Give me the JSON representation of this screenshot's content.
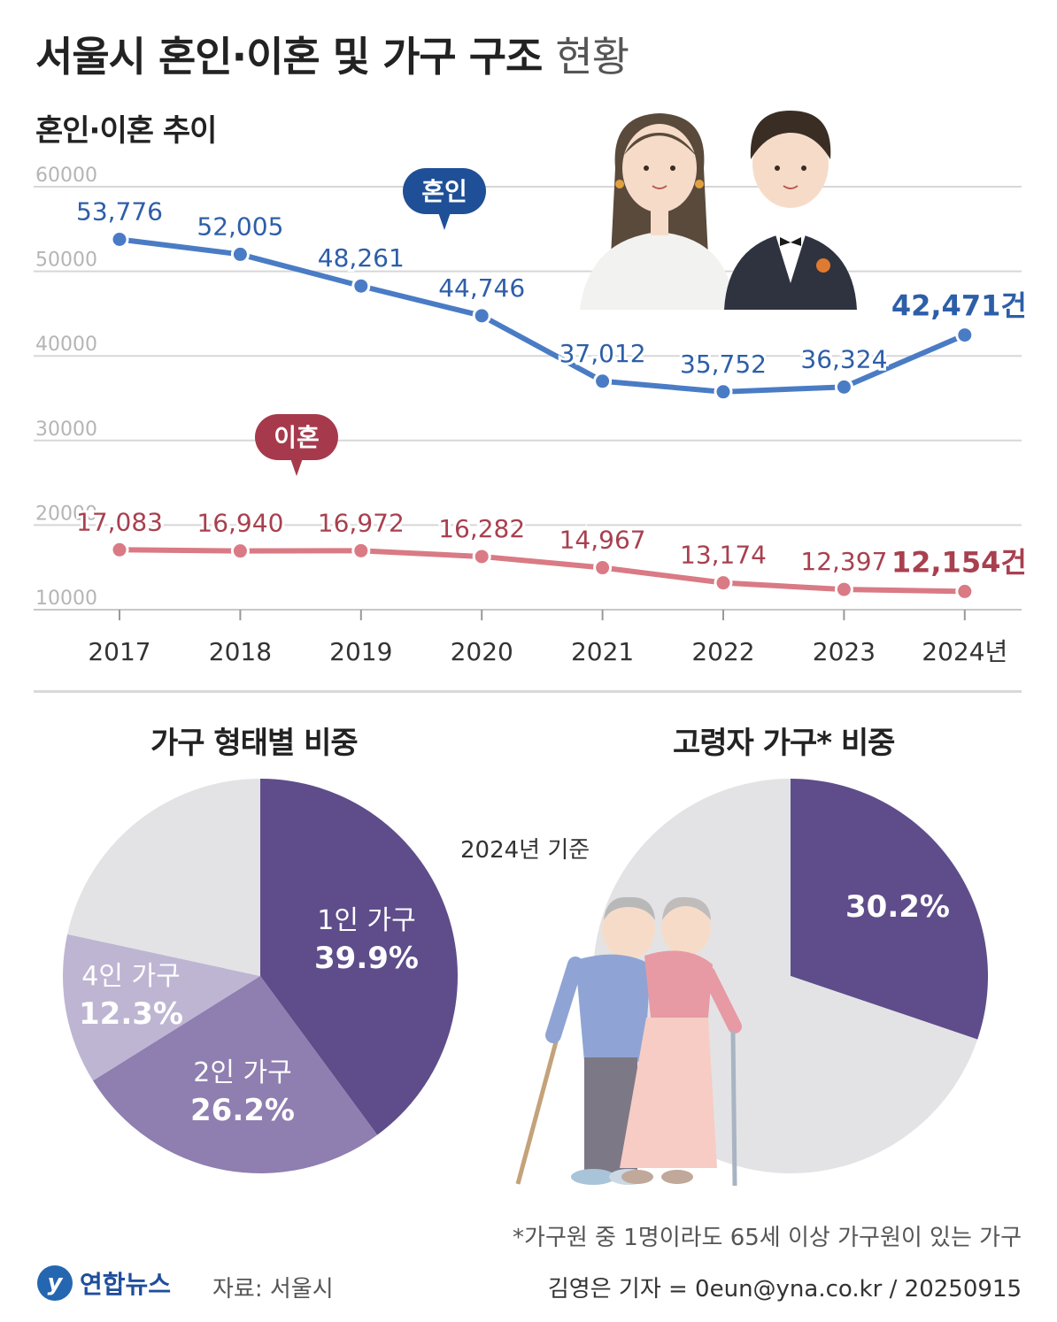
{
  "title": {
    "main": "서울시 혼인·이혼 및 가구 구조",
    "light": "현황"
  },
  "line_section_title": "혼인·이혼 추이",
  "marriage_tag": "혼인",
  "divorce_tag": "이혼",
  "x_last_suffix": "년",
  "value_unit_suffix": "건",
  "colors": {
    "marriage": "#4a7cc5",
    "marriage_label": "#2d5ea8",
    "divorce": "#d97a85",
    "divorce_label": "#a8404f",
    "tag_marriage": "#1f5097",
    "tag_divorce": "#a63a4c",
    "pie_dark": "#5e4d8a",
    "pie_mid": "#8f7eb0",
    "pie_light": "#beb5d3",
    "pie_grey": "#e3e3e5"
  },
  "chart_data": [
    {
      "type": "line",
      "title": "혼인·이혼 추이",
      "categories": [
        "2017",
        "2018",
        "2019",
        "2020",
        "2021",
        "2022",
        "2023",
        "2024"
      ],
      "y_ticks": [
        "60000",
        "50000",
        "40000",
        "30000",
        "20000",
        "10000"
      ],
      "ylim": [
        10000,
        60000
      ],
      "grid": true,
      "series": [
        {
          "name": "혼인",
          "values": [
            53776,
            52005,
            48261,
            44746,
            37012,
            35752,
            36324,
            42471
          ],
          "labels": [
            "53,776",
            "52,005",
            "48,261",
            "44,746",
            "37,012",
            "35,752",
            "36,324",
            "42,471"
          ]
        },
        {
          "name": "이혼",
          "values": [
            17083,
            16940,
            16972,
            16282,
            14967,
            13174,
            12397,
            12154
          ],
          "labels": [
            "17,083",
            "16,940",
            "16,972",
            "16,282",
            "14,967",
            "13,174",
            "12,397",
            "12,154"
          ]
        }
      ]
    },
    {
      "type": "pie",
      "title": "가구 형태별 비중",
      "slices": [
        {
          "label": "1인 가구",
          "value": 39.9,
          "text": "39.9%"
        },
        {
          "label": "2인 가구",
          "value": 26.2,
          "text": "26.2%"
        },
        {
          "label": "4인 가구",
          "value": 12.3,
          "text": "12.3%"
        },
        {
          "label": "",
          "value": 21.6,
          "text": ""
        }
      ]
    },
    {
      "type": "pie",
      "title": "고령자 가구* 비중",
      "slices": [
        {
          "label": "",
          "value": 30.2,
          "text": "30.2%"
        },
        {
          "label": "",
          "value": 69.8,
          "text": ""
        }
      ]
    }
  ],
  "basis_note": "2024년 기준",
  "footnote": "*가구원 중 1명이라도 65세 이상 가구원이 있는 가구",
  "logo_mark": "y",
  "logo_text": "연합뉴스",
  "source": "자료: 서울시",
  "credit": "김영은 기자 = 0eun@yna.co.kr / 20250915"
}
